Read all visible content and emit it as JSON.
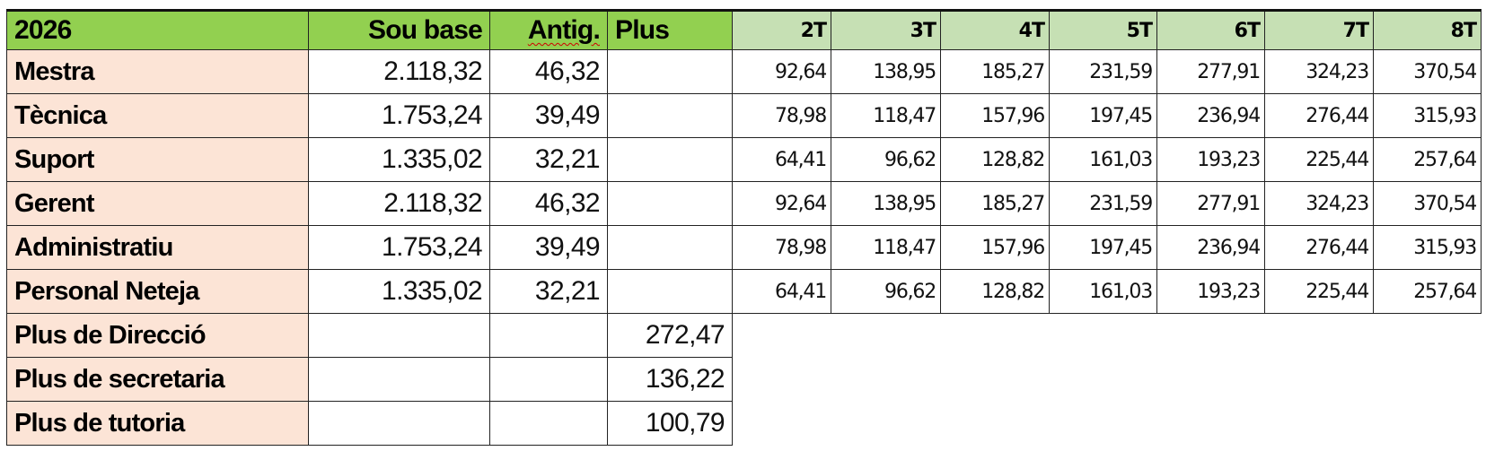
{
  "header": {
    "year": "2026",
    "sou_base": "Sou base",
    "antig": "Antig.",
    "plus": "Plus",
    "trienni_cols": [
      "2T",
      "3T",
      "4T",
      "5T",
      "6T",
      "7T",
      "8T"
    ]
  },
  "colors": {
    "header_green": "#92d050",
    "header_light_green": "#c6e0b4",
    "label_peach": "#fce4d6",
    "spellcheck_underline": "#d00000"
  },
  "rows": [
    {
      "label": "Mestra",
      "sou_base": "2.118,32",
      "antig": "46,32",
      "plus": "",
      "triennis": [
        "92,64",
        "138,95",
        "185,27",
        "231,59",
        "277,91",
        "324,23",
        "370,54"
      ]
    },
    {
      "label": "Tècnica",
      "sou_base": "1.753,24",
      "antig": "39,49",
      "plus": "",
      "triennis": [
        "78,98",
        "118,47",
        "157,96",
        "197,45",
        "236,94",
        "276,44",
        "315,93"
      ]
    },
    {
      "label": "Suport",
      "sou_base": "1.335,02",
      "antig": "32,21",
      "plus": "",
      "triennis": [
        "64,41",
        "96,62",
        "128,82",
        "161,03",
        "193,23",
        "225,44",
        "257,64"
      ]
    },
    {
      "label": "Gerent",
      "sou_base": "2.118,32",
      "antig": "46,32",
      "plus": "",
      "triennis": [
        "92,64",
        "138,95",
        "185,27",
        "231,59",
        "277,91",
        "324,23",
        "370,54"
      ]
    },
    {
      "label": "Administratiu",
      "sou_base": "1.753,24",
      "antig": "39,49",
      "plus": "",
      "triennis": [
        "78,98",
        "118,47",
        "157,96",
        "197,45",
        "236,94",
        "276,44",
        "315,93"
      ]
    },
    {
      "label": "Personal Neteja",
      "sou_base": "1.335,02",
      "antig": "32,21",
      "plus": "",
      "triennis": [
        "64,41",
        "96,62",
        "128,82",
        "161,03",
        "193,23",
        "225,44",
        "257,64"
      ]
    },
    {
      "label": "Plus de Direcció",
      "sou_base": "",
      "antig": "",
      "plus": "272,47"
    },
    {
      "label": "Plus de secretaria",
      "sou_base": "",
      "antig": "",
      "plus": "136,22"
    },
    {
      "label": "Plus de tutoria",
      "sou_base": "",
      "antig": "",
      "plus": "100,79"
    }
  ]
}
